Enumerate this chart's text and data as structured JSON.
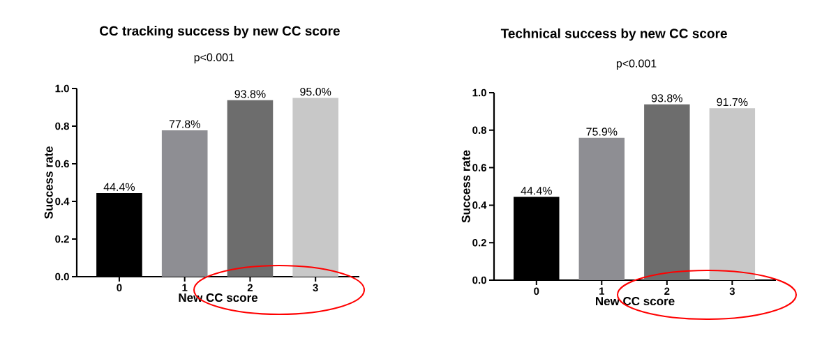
{
  "chart_data": [
    {
      "type": "bar",
      "title": "CC tracking success by new CC score",
      "xlabel": "New CC score",
      "ylabel": "Success rate",
      "annotations": [
        "p<0.001"
      ],
      "categories": [
        "0",
        "1",
        "2",
        "3"
      ],
      "values": [
        0.444,
        0.778,
        0.938,
        0.95
      ],
      "colors": [
        "#000000",
        "#8e8e93",
        "#6d6d6d",
        "#c8c8c8"
      ],
      "value_labels": [
        "44.4%",
        "77.8%",
        "93.8%",
        "95.0%"
      ],
      "ylim": [
        0,
        1
      ],
      "yticks": [
        {
          "value": 0,
          "label": "0.0"
        },
        {
          "value": 0.2,
          "label": "0.2"
        },
        {
          "value": 0.4,
          "label": "0.4"
        },
        {
          "value": 0.6,
          "label": "0.6"
        },
        {
          "value": 0.8,
          "label": "0.8"
        },
        {
          "value": 1,
          "label": "1.0"
        }
      ],
      "grid": false
    },
    {
      "type": "bar",
      "title": "Technical success by new CC score",
      "xlabel": "New CC score",
      "ylabel": "Success rate",
      "annotations": [
        "p<0.001"
      ],
      "categories": [
        "0",
        "1",
        "2",
        "3"
      ],
      "values": [
        0.444,
        0.759,
        0.938,
        0.917
      ],
      "colors": [
        "#000000",
        "#8e8e93",
        "#6d6d6d",
        "#c8c8c8"
      ],
      "value_labels": [
        "44.4%",
        "75.9%",
        "93.8%",
        "91.7%"
      ],
      "ylim": [
        0,
        1
      ],
      "yticks": [
        {
          "value": 0,
          "label": "0.0"
        },
        {
          "value": 0.2,
          "label": "0.2"
        },
        {
          "value": 0.4,
          "label": "0.4"
        },
        {
          "value": 0.6,
          "label": "0.6"
        },
        {
          "value": 0.8,
          "label": "0.8"
        },
        {
          "value": 1,
          "label": "1.0"
        }
      ],
      "grid": false
    }
  ]
}
